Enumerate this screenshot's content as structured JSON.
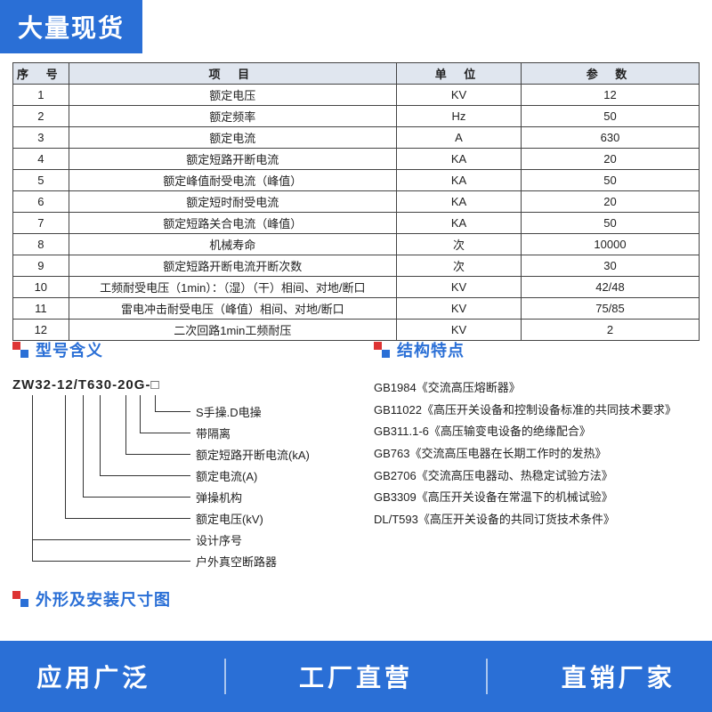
{
  "badge_top": "大量现货",
  "table": {
    "headers": [
      "序 号",
      "项 目",
      "单 位",
      "参 数"
    ],
    "rows": [
      [
        "1",
        "额定电压",
        "KV",
        "12"
      ],
      [
        "2",
        "额定频率",
        "Hz",
        "50"
      ],
      [
        "3",
        "额定电流",
        "A",
        "630"
      ],
      [
        "4",
        "额定短路开断电流",
        "KA",
        "20"
      ],
      [
        "5",
        "额定峰值耐受电流（峰值）",
        "KA",
        "50"
      ],
      [
        "6",
        "额定短时耐受电流",
        "KA",
        "20"
      ],
      [
        "7",
        "额定短路关合电流（峰值）",
        "KA",
        "50"
      ],
      [
        "8",
        "机械寿命",
        "次",
        "10000"
      ],
      [
        "9",
        "额定短路开断电流开断次数",
        "次",
        "30"
      ],
      [
        "10",
        "工频耐受电压（1min）：（湿）（干）相间、对地/断口",
        "KV",
        "42/48"
      ],
      [
        "11",
        "雷电冲击耐受电压（峰值）相间、对地/断口",
        "KV",
        "75/85"
      ],
      [
        "12",
        "二次回路1min工频耐压",
        "KV",
        "2"
      ]
    ]
  },
  "section_model_title": "型号含义",
  "section_struct_title": "结构特点",
  "section_dim_title": "外形及安装尺寸图",
  "model": {
    "segments": [
      "ZW32",
      "-",
      "12",
      " / ",
      "T",
      " ",
      "630",
      "-",
      "20",
      " ",
      "G",
      " - ",
      "□"
    ],
    "leaders": [
      {
        "seg_index": 12,
        "label": "S手操.D电操"
      },
      {
        "seg_index": 10,
        "label": "带隔离"
      },
      {
        "seg_index": 8,
        "label": "额定短路开断电流(kA)"
      },
      {
        "seg_index": 6,
        "label": "额定电流(A)"
      },
      {
        "seg_index": 4,
        "label": "弹操机构"
      },
      {
        "seg_index": 2,
        "label": "额定电压(kV)"
      },
      {
        "seg_index": 0,
        "label": "设计序号",
        "extra": "户外真空断路器"
      }
    ]
  },
  "standards": [
    {
      "code": "GB1984",
      "title": "《交流高压熔断器》"
    },
    {
      "code": "GB11022",
      "title": "《高压开关设备和控制设备标准的共同技术要求》"
    },
    {
      "code": "GB311.1-6",
      "title": "《高压输变电设备的绝缘配合》"
    },
    {
      "code": "GB763",
      "title": "《交流高压电器在长期工作时的发热》"
    },
    {
      "code": "GB2706",
      "title": "《交流高压电器动、热稳定试验方法》"
    },
    {
      "code": "GB3309",
      "title": "《高压开关设备在常温下的机械试验》"
    },
    {
      "code": "DL/T593",
      "title": "《高压开关设备的共同订货技术条件》"
    }
  ],
  "footer": [
    "应用广泛",
    "工厂直营",
    "直销厂家"
  ],
  "colors": {
    "brand": "#2a6fd6",
    "accent": "#d33",
    "border": "#444",
    "header_bg": "#e0e6ef"
  }
}
